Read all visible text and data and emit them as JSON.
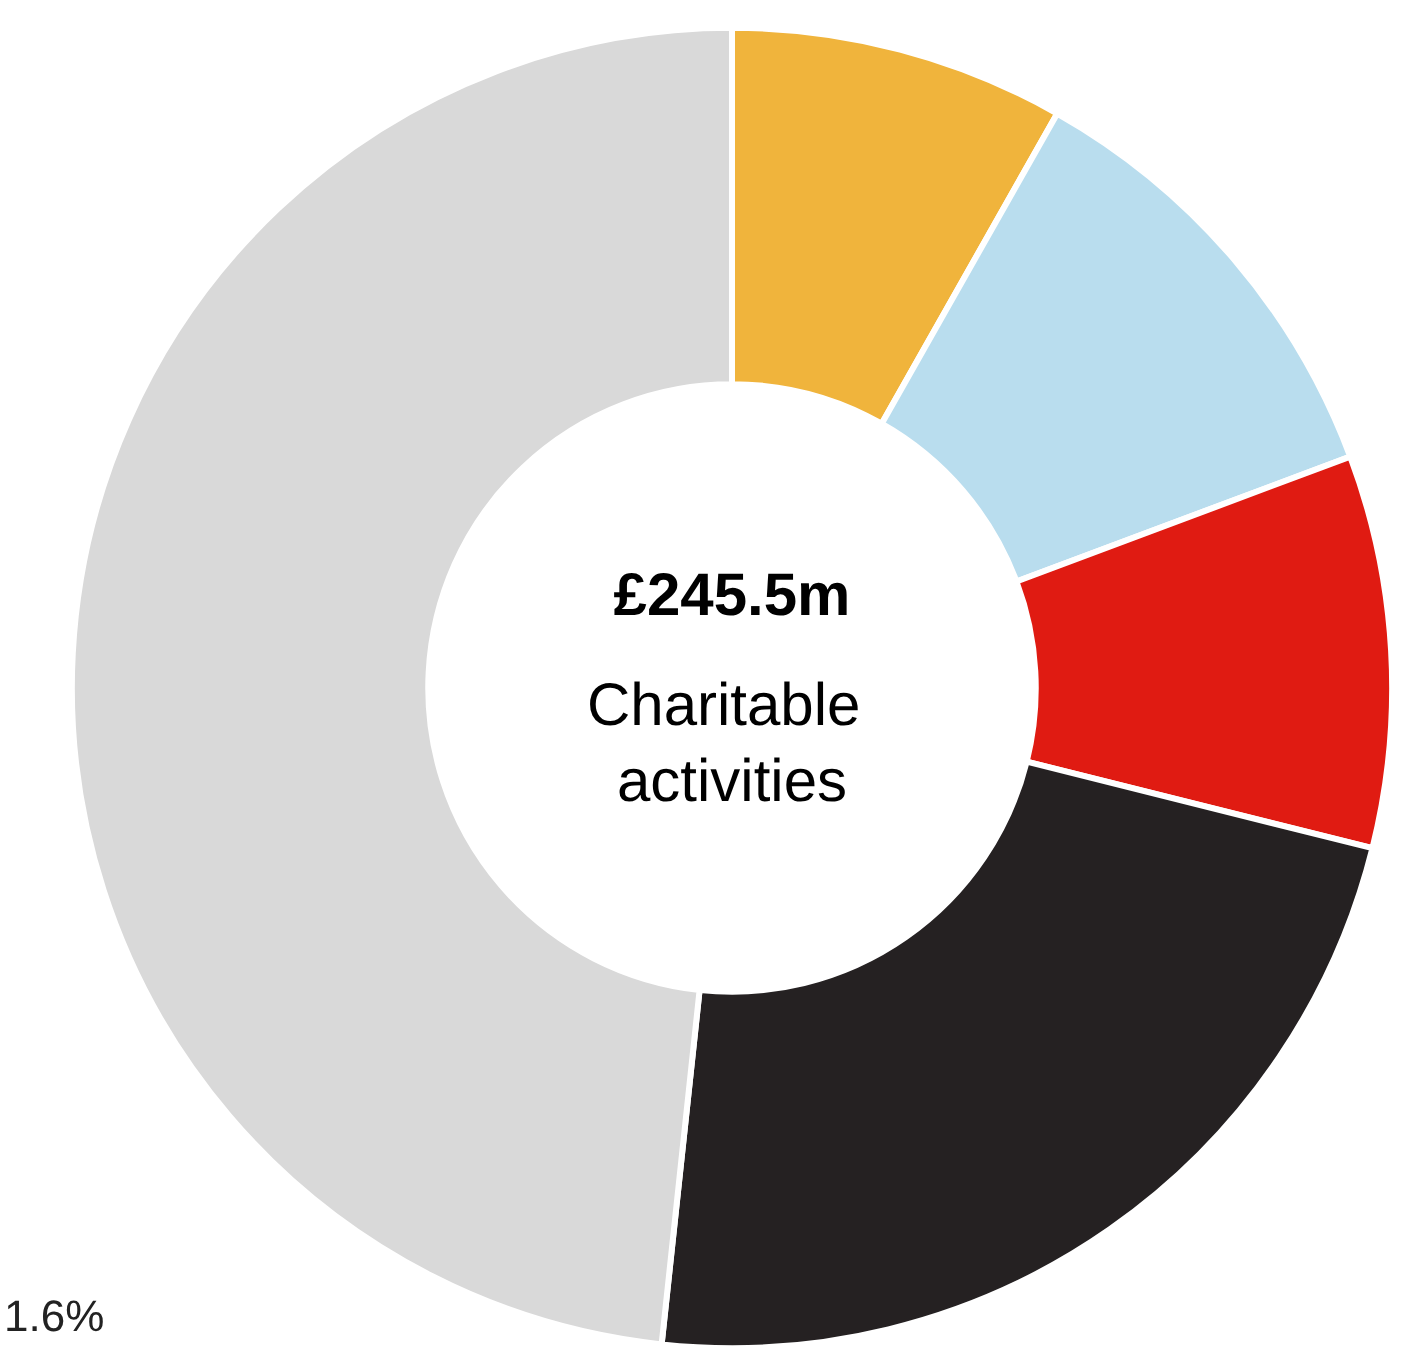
{
  "chart_data": {
    "type": "donut",
    "title": "£245.5m",
    "subtitle": "Charitable activities",
    "categories": [
      null,
      null,
      null,
      null,
      null
    ],
    "values": [
      8.2,
      11.1,
      9.6,
      22.8,
      48.3
    ],
    "colors": [
      "#f0b43c",
      "#b9ddee",
      "#e01b12",
      "#252122",
      "#d9d9d9"
    ],
    "annotations": [
      "1.6%"
    ]
  }
}
